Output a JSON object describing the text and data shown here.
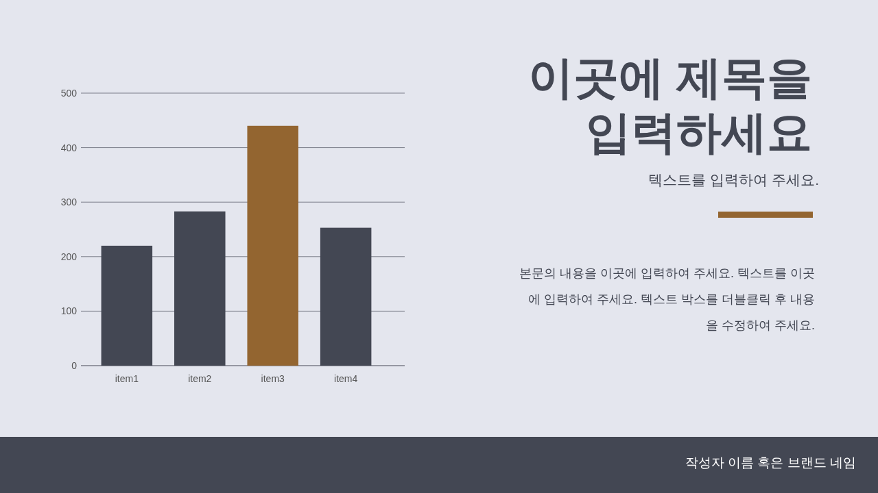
{
  "chart_data": {
    "type": "bar",
    "title": "이곳에 제목을\n입력하세요",
    "subtitle": "텍스트를 입력하여 주세요.",
    "annotations": [
      "본문의 내용을 이곳에 입력하여 주세요. 텍스트를 이곳\n에 입력하여 주세요. 텍스트 박스를 더블클릭 후 내용\n을 수정하여 주세요.",
      "작성자 이름 혹은 브랜드 네임"
    ],
    "categories": [
      "item1",
      "item2",
      "item3",
      "item4"
    ],
    "values": [
      220,
      283,
      440,
      253
    ],
    "colors": [
      "#434753",
      "#434753",
      "#936530",
      "#434753"
    ],
    "ylim": [
      0,
      500
    ],
    "yticks": [
      0,
      100,
      200,
      300,
      400,
      500
    ],
    "grid": "y"
  }
}
